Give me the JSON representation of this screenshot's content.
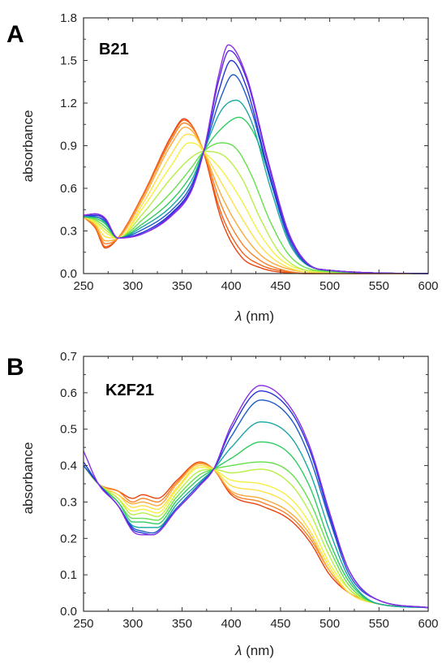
{
  "chart_data": [
    {
      "type": "line",
      "panel_letter": "A",
      "sample_label": "B21",
      "xlabel_symbol": "λ",
      "xlabel_unit": " (nm)",
      "ylabel": "absorbance",
      "xlim": [
        250,
        600
      ],
      "ylim": [
        0.0,
        1.8
      ],
      "xticks": [
        "250",
        "300",
        "350",
        "400",
        "450",
        "500",
        "550",
        "600"
      ],
      "yticks": [
        "0.0",
        "0.3",
        "0.6",
        "0.9",
        "1.2",
        "1.5",
        "1.8"
      ],
      "grid": false,
      "isosbestic_points_nm": [
        285,
        372
      ],
      "series": [
        {
          "color": "#e8420e",
          "x": [
            250,
            262,
            272,
            285,
            310,
            340,
            352,
            362,
            372,
            390,
            410,
            430,
            450,
            480,
            600
          ],
          "y": [
            0.4,
            0.32,
            0.18,
            0.25,
            0.55,
            0.98,
            1.09,
            1.02,
            0.85,
            0.38,
            0.12,
            0.04,
            0.01,
            0.0,
            0.0
          ]
        },
        {
          "color": "#f0601a",
          "x": [
            250,
            262,
            272,
            285,
            310,
            340,
            352,
            362,
            372,
            390,
            410,
            430,
            450,
            480,
            600
          ],
          "y": [
            0.4,
            0.32,
            0.19,
            0.25,
            0.55,
            0.97,
            1.08,
            1.02,
            0.85,
            0.42,
            0.16,
            0.06,
            0.02,
            0.0,
            0.0
          ]
        },
        {
          "color": "#f98225",
          "x": [
            250,
            262,
            272,
            285,
            310,
            340,
            352,
            362,
            372,
            390,
            410,
            430,
            450,
            480,
            600
          ],
          "y": [
            0.4,
            0.33,
            0.21,
            0.25,
            0.54,
            0.95,
            1.06,
            1.01,
            0.86,
            0.48,
            0.22,
            0.09,
            0.03,
            0.0,
            0.0
          ]
        },
        {
          "color": "#fba93a",
          "x": [
            250,
            262,
            272,
            285,
            310,
            340,
            353,
            362,
            372,
            390,
            410,
            430,
            450,
            480,
            600
          ],
          "y": [
            0.4,
            0.34,
            0.23,
            0.25,
            0.52,
            0.92,
            1.03,
            0.99,
            0.86,
            0.55,
            0.3,
            0.13,
            0.05,
            0.01,
            0.0
          ]
        },
        {
          "color": "#fde048",
          "x": [
            250,
            262,
            272,
            285,
            310,
            340,
            355,
            362,
            372,
            390,
            410,
            430,
            450,
            480,
            600
          ],
          "y": [
            0.4,
            0.35,
            0.26,
            0.25,
            0.49,
            0.85,
            0.98,
            0.97,
            0.86,
            0.64,
            0.4,
            0.19,
            0.07,
            0.01,
            0.0
          ]
        },
        {
          "color": "#f4f040",
          "x": [
            250,
            262,
            272,
            285,
            310,
            340,
            357,
            365,
            372,
            390,
            410,
            430,
            450,
            480,
            600
          ],
          "y": [
            0.4,
            0.36,
            0.29,
            0.25,
            0.46,
            0.77,
            0.92,
            0.91,
            0.86,
            0.73,
            0.52,
            0.27,
            0.1,
            0.02,
            0.0
          ]
        },
        {
          "color": "#b8ee45",
          "x": [
            250,
            262,
            272,
            285,
            310,
            340,
            360,
            372,
            390,
            410,
            430,
            450,
            480,
            600
          ],
          "y": [
            0.4,
            0.37,
            0.31,
            0.25,
            0.42,
            0.68,
            0.82,
            0.86,
            0.84,
            0.68,
            0.38,
            0.14,
            0.02,
            0.0
          ]
        },
        {
          "color": "#64e04b",
          "x": [
            250,
            262,
            272,
            285,
            310,
            340,
            360,
            372,
            390,
            405,
            420,
            440,
            460,
            490,
            600
          ],
          "y": [
            0.4,
            0.38,
            0.33,
            0.25,
            0.38,
            0.58,
            0.75,
            0.86,
            0.92,
            0.88,
            0.7,
            0.36,
            0.12,
            0.02,
            0.0
          ]
        },
        {
          "color": "#2fcc60",
          "x": [
            250,
            262,
            272,
            285,
            310,
            340,
            360,
            372,
            390,
            408,
            425,
            445,
            465,
            495,
            600
          ],
          "y": [
            0.4,
            0.39,
            0.35,
            0.25,
            0.35,
            0.52,
            0.7,
            0.86,
            1.02,
            1.1,
            0.96,
            0.55,
            0.18,
            0.02,
            0.0
          ]
        },
        {
          "color": "#1aa8a0",
          "x": [
            250,
            262,
            272,
            285,
            310,
            340,
            360,
            372,
            390,
            405,
            420,
            440,
            460,
            490,
            600
          ],
          "y": [
            0.4,
            0.4,
            0.36,
            0.25,
            0.33,
            0.48,
            0.66,
            0.86,
            1.15,
            1.22,
            1.08,
            0.6,
            0.2,
            0.03,
            0.0
          ]
        },
        {
          "color": "#1c5cc8",
          "x": [
            250,
            262,
            272,
            285,
            310,
            340,
            360,
            372,
            390,
            402,
            418,
            440,
            460,
            490,
            600
          ],
          "y": [
            0.41,
            0.4,
            0.37,
            0.25,
            0.31,
            0.45,
            0.63,
            0.86,
            1.25,
            1.4,
            1.2,
            0.65,
            0.22,
            0.03,
            0.0
          ]
        },
        {
          "color": "#2434d8",
          "x": [
            250,
            262,
            272,
            285,
            310,
            340,
            360,
            372,
            388,
            400,
            415,
            438,
            460,
            490,
            600
          ],
          "y": [
            0.41,
            0.41,
            0.38,
            0.25,
            0.29,
            0.43,
            0.61,
            0.86,
            1.3,
            1.5,
            1.32,
            0.72,
            0.24,
            0.03,
            0.0
          ]
        },
        {
          "color": "#5a2ae0",
          "x": [
            250,
            262,
            272,
            285,
            310,
            340,
            360,
            372,
            388,
            398,
            415,
            438,
            460,
            490,
            600
          ],
          "y": [
            0.41,
            0.42,
            0.38,
            0.25,
            0.28,
            0.42,
            0.6,
            0.86,
            1.38,
            1.57,
            1.38,
            0.76,
            0.25,
            0.03,
            0.0
          ]
        },
        {
          "color": "#8a2ee6",
          "x": [
            250,
            262,
            272,
            285,
            310,
            340,
            360,
            372,
            388,
            397,
            415,
            438,
            460,
            490,
            600
          ],
          "y": [
            0.41,
            0.42,
            0.39,
            0.25,
            0.28,
            0.41,
            0.59,
            0.86,
            1.42,
            1.61,
            1.4,
            0.78,
            0.26,
            0.03,
            0.0
          ]
        }
      ]
    },
    {
      "type": "line",
      "panel_letter": "B",
      "sample_label": "K2F21",
      "xlabel_symbol": "λ",
      "xlabel_unit": " (nm)",
      "ylabel": "absorbance",
      "xlim": [
        250,
        600
      ],
      "ylim": [
        0.0,
        0.7
      ],
      "xticks": [
        "250",
        "300",
        "350",
        "400",
        "450",
        "500",
        "550",
        "600"
      ],
      "yticks": [
        "0.0",
        "0.1",
        "0.2",
        "0.3",
        "0.4",
        "0.5",
        "0.6",
        "0.7"
      ],
      "grid": false,
      "isosbestic_points_nm": [
        265,
        382
      ],
      "series": [
        {
          "color": "#e8420e",
          "x": [
            250,
            265,
            285,
            300,
            310,
            325,
            345,
            368,
            382,
            400,
            430,
            460,
            480,
            500,
            520,
            550,
            600
          ],
          "y": [
            0.4,
            0.35,
            0.33,
            0.31,
            0.32,
            0.31,
            0.36,
            0.41,
            0.39,
            0.32,
            0.29,
            0.25,
            0.19,
            0.1,
            0.05,
            0.02,
            0.01
          ]
        },
        {
          "color": "#f98225",
          "x": [
            250,
            265,
            285,
            300,
            310,
            325,
            345,
            368,
            382,
            400,
            430,
            460,
            480,
            500,
            520,
            550,
            600
          ],
          "y": [
            0.4,
            0.35,
            0.33,
            0.3,
            0.31,
            0.3,
            0.355,
            0.408,
            0.39,
            0.325,
            0.3,
            0.26,
            0.2,
            0.11,
            0.05,
            0.02,
            0.01
          ]
        },
        {
          "color": "#fba93a",
          "x": [
            250,
            265,
            285,
            300,
            310,
            325,
            345,
            368,
            382,
            400,
            430,
            460,
            480,
            500,
            520,
            550,
            600
          ],
          "y": [
            0.4,
            0.35,
            0.32,
            0.295,
            0.3,
            0.29,
            0.35,
            0.405,
            0.39,
            0.33,
            0.31,
            0.27,
            0.21,
            0.11,
            0.05,
            0.02,
            0.01
          ]
        },
        {
          "color": "#fde048",
          "x": [
            250,
            265,
            285,
            300,
            310,
            325,
            345,
            368,
            382,
            400,
            430,
            460,
            480,
            500,
            520,
            550,
            600
          ],
          "y": [
            0.4,
            0.35,
            0.32,
            0.285,
            0.29,
            0.28,
            0.34,
            0.4,
            0.39,
            0.345,
            0.33,
            0.29,
            0.22,
            0.12,
            0.05,
            0.02,
            0.01
          ]
        },
        {
          "color": "#f4f040",
          "x": [
            250,
            265,
            285,
            300,
            310,
            325,
            345,
            368,
            382,
            400,
            430,
            460,
            480,
            500,
            520,
            550,
            600
          ],
          "y": [
            0.4,
            0.35,
            0.31,
            0.275,
            0.28,
            0.27,
            0.335,
            0.395,
            0.39,
            0.36,
            0.35,
            0.31,
            0.24,
            0.13,
            0.06,
            0.02,
            0.01
          ]
        },
        {
          "color": "#b8ee45",
          "x": [
            250,
            265,
            285,
            300,
            310,
            325,
            345,
            368,
            382,
            400,
            430,
            460,
            480,
            500,
            520,
            550,
            600
          ],
          "y": [
            0.4,
            0.35,
            0.31,
            0.265,
            0.27,
            0.26,
            0.325,
            0.385,
            0.39,
            0.38,
            0.39,
            0.35,
            0.27,
            0.15,
            0.06,
            0.02,
            0.01
          ]
        },
        {
          "color": "#64e04b",
          "x": [
            250,
            265,
            285,
            300,
            310,
            325,
            345,
            368,
            382,
            400,
            430,
            460,
            480,
            500,
            520,
            550,
            600
          ],
          "y": [
            0.4,
            0.35,
            0.3,
            0.255,
            0.255,
            0.25,
            0.315,
            0.375,
            0.39,
            0.4,
            0.41,
            0.38,
            0.3,
            0.17,
            0.07,
            0.02,
            0.01
          ]
        },
        {
          "color": "#2fcc60",
          "x": [
            250,
            265,
            285,
            300,
            310,
            325,
            345,
            368,
            382,
            400,
            430,
            460,
            480,
            500,
            520,
            550,
            600
          ],
          "y": [
            0.4,
            0.35,
            0.3,
            0.245,
            0.245,
            0.24,
            0.305,
            0.365,
            0.39,
            0.42,
            0.465,
            0.43,
            0.34,
            0.19,
            0.08,
            0.02,
            0.01
          ]
        },
        {
          "color": "#1aa8a0",
          "x": [
            250,
            265,
            285,
            300,
            310,
            325,
            345,
            368,
            382,
            400,
            430,
            460,
            480,
            500,
            520,
            550,
            600
          ],
          "y": [
            0.4,
            0.35,
            0.29,
            0.235,
            0.23,
            0.23,
            0.295,
            0.355,
            0.39,
            0.45,
            0.52,
            0.48,
            0.38,
            0.22,
            0.09,
            0.02,
            0.01
          ]
        },
        {
          "color": "#1c5cc8",
          "x": [
            250,
            265,
            285,
            300,
            310,
            320,
            345,
            368,
            382,
            400,
            430,
            460,
            480,
            500,
            520,
            550,
            600
          ],
          "y": [
            0.4,
            0.35,
            0.29,
            0.23,
            0.22,
            0.215,
            0.285,
            0.35,
            0.39,
            0.48,
            0.58,
            0.53,
            0.42,
            0.25,
            0.1,
            0.03,
            0.01
          ]
        },
        {
          "color": "#2434d8",
          "x": [
            250,
            265,
            285,
            300,
            310,
            320,
            345,
            368,
            382,
            400,
            430,
            460,
            480,
            500,
            520,
            550,
            600
          ],
          "y": [
            0.41,
            0.35,
            0.29,
            0.225,
            0.215,
            0.21,
            0.28,
            0.345,
            0.39,
            0.5,
            0.605,
            0.55,
            0.44,
            0.26,
            0.11,
            0.03,
            0.01
          ]
        },
        {
          "color": "#8a2ee6",
          "x": [
            250,
            265,
            285,
            300,
            310,
            320,
            345,
            368,
            382,
            400,
            430,
            460,
            480,
            500,
            520,
            550,
            600
          ],
          "y": [
            0.44,
            0.35,
            0.29,
            0.22,
            0.21,
            0.21,
            0.28,
            0.345,
            0.39,
            0.51,
            0.62,
            0.56,
            0.45,
            0.27,
            0.11,
            0.03,
            0.01
          ]
        }
      ]
    }
  ]
}
